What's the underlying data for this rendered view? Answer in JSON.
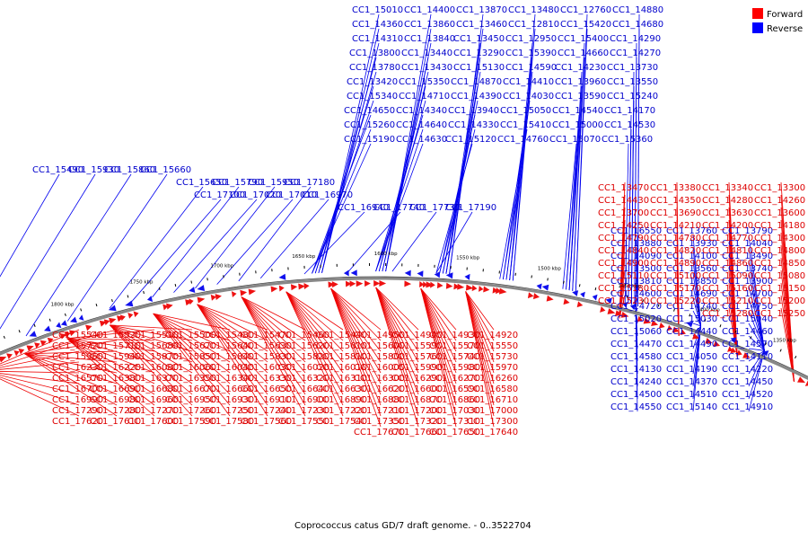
{
  "caption": "Coprococcus catus GD/7 draft genome. - 0..3522704",
  "legend": {
    "forward": {
      "label": "Forward",
      "color": "#ff0000"
    },
    "reverse": {
      "label": "Reverse",
      "color": "#0000ff"
    }
  },
  "colors": {
    "forward_gene": "#ee1111",
    "reverse_gene": "#1111ee",
    "forward_line": "#ee0000",
    "reverse_line": "#0000ee",
    "backbone": "#888888"
  },
  "ticks": [
    "1850 kbp",
    "1800 kbp",
    "1750 kbp",
    "1700 kbp",
    "1650 kbp",
    "1600 kbp",
    "1550 kbp",
    "1500 kbp",
    "1450 kbp",
    "1400 kbp",
    "1350 kbp"
  ],
  "labels_reverse": [
    "CC1_15010",
    "CC1_14400",
    "CC1_13870",
    "CC1_13480",
    "CC1_12760",
    "CC1_14880",
    "CC1_14360",
    "CC1_13860",
    "CC1_13460",
    "CC1_12810",
    "CC1_15420",
    "CC1_14680",
    "CC1_14310",
    "CC1_13840",
    "CC1_13450",
    "CC1_12950",
    "CC1_15400",
    "CC1_14290",
    "CC1_13800",
    "CC1_13440",
    "CC1_13290",
    "CC1_15390",
    "CC1_14660",
    "CC1_14270",
    "CC1_13780",
    "CC1_13430",
    "CC1_15130",
    "CC1_14590",
    "CC1_14230",
    "CC1_13730",
    "CC1_13420",
    "CC1_15350",
    "CC1_14870",
    "CC1_14410",
    "CC1_13960",
    "CC1_13550",
    "CC1_15340",
    "CC1_14710",
    "CC1_14390",
    "CC1_14030",
    "CC1_13590",
    "CC1_15240",
    "CC1_14650",
    "CC1_14340",
    "CC1_13940",
    "CC1_15050",
    "CC1_14540",
    "CC1_14170",
    "CC1_15260",
    "CC1_14640",
    "CC1_14330",
    "CC1_15410",
    "CC1_15000",
    "CC1_14530",
    "CC1_15190",
    "CC1_14630",
    "CC1_15120",
    "CC1_14760",
    "CC1_15070",
    "CC1_15360",
    "CC1_15490",
    "CC1_15930",
    "CC1_15860",
    "CC1_15660",
    "CC1_15650",
    "CC1_15790",
    "CC1_15950",
    "CC1_17180",
    "CC1_17100",
    "CC1_17020",
    "CC1_17010",
    "CC1_16970",
    "CC1_16940",
    "CC1_17740",
    "CC1_17730",
    "CC1_17190",
    "CC1_16550",
    "CC1_13760",
    "CC1_13790",
    "CC1_13880",
    "CC1_13930",
    "CC1_14040",
    "CC1_14090",
    "CC1_14100",
    "CC1_13490",
    "CC1_13500",
    "CC1_13560",
    "CC1_13740",
    "CC1_13810",
    "CC1_13850",
    "CC1_13900",
    "CC1_14600",
    "CC1_14690",
    "CC1_14700",
    "CC1_14720",
    "CC1_14740",
    "CC1_14750",
    "CC1_15020",
    "CC1_15030",
    "CC1_15040",
    "CC1_15060",
    "CC1_14440",
    "CC1_14460",
    "CC1_14470",
    "CC1_14490",
    "CC1_14570",
    "CC1_14580",
    "CC1_14050",
    "CC1_14110",
    "CC1_14130",
    "CC1_14190",
    "CC1_14220",
    "CC1_14240",
    "CC1_14370",
    "CC1_14450",
    "CC1_14500",
    "CC1_14510",
    "CC1_14520",
    "CC1_14550",
    "CC1_15140",
    "CC1_14910"
  ],
  "labels_forward": [
    "CC1_13300",
    "CC1_13340",
    "CC1_13380",
    "CC1_13470",
    "CC1_14260",
    "CC1_14280",
    "CC1_14350",
    "CC1_14430",
    "CC1_13600",
    "CC1_13630",
    "CC1_13690",
    "CC1_13700",
    "CC1_14180",
    "CC1_14200",
    "CC1_14210",
    "CC1_14250",
    "CC1_14300",
    "CC1_14770",
    "CC1_14780",
    "CC1_14790",
    "CC1_14800",
    "CC1_14810",
    "CC1_14820",
    "CC1_14840",
    "CC1_14850",
    "CC1_14860",
    "CC1_14890",
    "CC1_14900",
    "CC1_15080",
    "CC1_15090",
    "CC1_15100",
    "CC1_15110",
    "CC1_15150",
    "CC1_15160",
    "CC1_15170",
    "CC1_15180",
    "CC1_15200",
    "CC1_15210",
    "CC1_15220",
    "CC1_15230",
    "CC1_15250",
    "CC1_15280",
    "CC1_14920",
    "CC1_14930",
    "CC1_14940",
    "CC1_14950",
    "CC1_15440",
    "CC1_15460",
    "CC1_15470",
    "CC1_15480",
    "CC1_15500",
    "CC1_15510",
    "CC1_15520",
    "CC1_15540",
    "CC1_15550",
    "CC1_15570",
    "CC1_15590",
    "CC1_15600",
    "CC1_15610",
    "CC1_15620",
    "CC1_15630",
    "CC1_15640",
    "CC1_15670",
    "CC1_15680",
    "CC1_15710",
    "CC1_15720",
    "CC1_15730",
    "CC1_15740",
    "CC1_15760",
    "CC1_15800",
    "CC1_15810",
    "CC1_15820",
    "CC1_15830",
    "CC1_15840",
    "CC1_15850",
    "CC1_15870",
    "CC1_15940",
    "CC1_15960",
    "CC1_15970",
    "CC1_15980",
    "CC1_15990",
    "CC1_16000",
    "CC1_16010",
    "CC1_16020",
    "CC1_16030",
    "CC1_16040",
    "CC1_16060",
    "CC1_16080",
    "CC1_16220",
    "CC1_16230",
    "CC1_16260",
    "CC1_16270",
    "CC1_16290",
    "CC1_16300",
    "CC1_16310",
    "CC1_16320",
    "CC1_16330",
    "CC1_16340",
    "CC1_16350",
    "CC1_16370",
    "CC1_16380",
    "CC1_16570",
    "CC1_16580",
    "CC1_16590",
    "CC1_16600",
    "CC1_16620",
    "CC1_16630",
    "CC1_16640",
    "CC1_16650",
    "CC1_16660",
    "CC1_16670",
    "CC1_16680",
    "CC1_16690",
    "CC1_16700",
    "CC1_16710",
    "CC1_16860",
    "CC1_16870",
    "CC1_16880",
    "CC1_16890",
    "CC1_16900",
    "CC1_16910",
    "CC1_16930",
    "CC1_16950",
    "CC1_16960",
    "CC1_16980",
    "CC1_16990",
    "CC1_17000",
    "CC1_17030",
    "CC1_17200",
    "CC1_17210",
    "CC1_17220",
    "CC1_17230",
    "CC1_17240",
    "CC1_17250",
    "CC1_17260",
    "CC1_17270",
    "CC1_17280",
    "CC1_17290",
    "CC1_17300",
    "CC1_17310",
    "CC1_17320",
    "CC1_17350",
    "CC1_17540",
    "CC1_17550",
    "CC1_17560",
    "CC1_17580",
    "CC1_17590",
    "CC1_17600",
    "CC1_17610",
    "CC1_17620",
    "CC1_17640",
    "CC1_17650",
    "CC1_17660",
    "CC1_17670"
  ]
}
